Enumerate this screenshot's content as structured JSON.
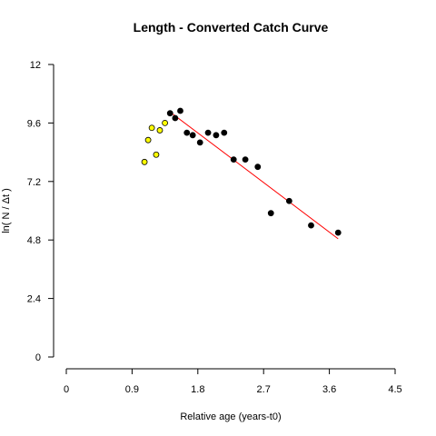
{
  "chart_data": {
    "type": "scatter",
    "title": "Length - Converted Catch Curve",
    "xlabel": "Relative age (years-t0)",
    "ylabel": "ln( N / Δt )",
    "xlim": [
      0,
      4.5
    ],
    "ylim": [
      0,
      12
    ],
    "x_ticks": [
      "0",
      "0.9",
      "1.8",
      "2.7",
      "3.6",
      "4.5"
    ],
    "y_ticks": [
      "0",
      "2.4",
      "4.8",
      "7.2",
      "9.6",
      "12"
    ],
    "grid": false,
    "legend": "none",
    "colors": {
      "excluded_fill": "#ffff00",
      "included_fill": "#000000",
      "point_stroke": "#000000",
      "regression": "#ff0000"
    },
    "series": [
      {
        "style": "open-yellow",
        "x": [
          1.07,
          1.12,
          1.17,
          1.23,
          1.28,
          1.35
        ],
        "y": [
          8.0,
          8.9,
          9.4,
          8.3,
          9.3,
          9.6
        ]
      },
      {
        "style": "filled-black",
        "x": [
          1.42,
          1.49,
          1.56,
          1.65,
          1.73,
          1.83,
          1.94,
          2.05,
          2.16,
          2.29,
          2.45,
          2.62,
          2.8,
          3.05,
          3.35,
          3.72
        ],
        "y": [
          10.0,
          9.8,
          10.1,
          9.2,
          9.1,
          8.8,
          9.2,
          9.1,
          9.2,
          8.1,
          8.1,
          7.8,
          5.9,
          6.4,
          5.4,
          5.1
        ]
      }
    ],
    "regression_line": {
      "x": [
        1.42,
        3.72
      ],
      "y": [
        10.05,
        4.85
      ]
    }
  }
}
